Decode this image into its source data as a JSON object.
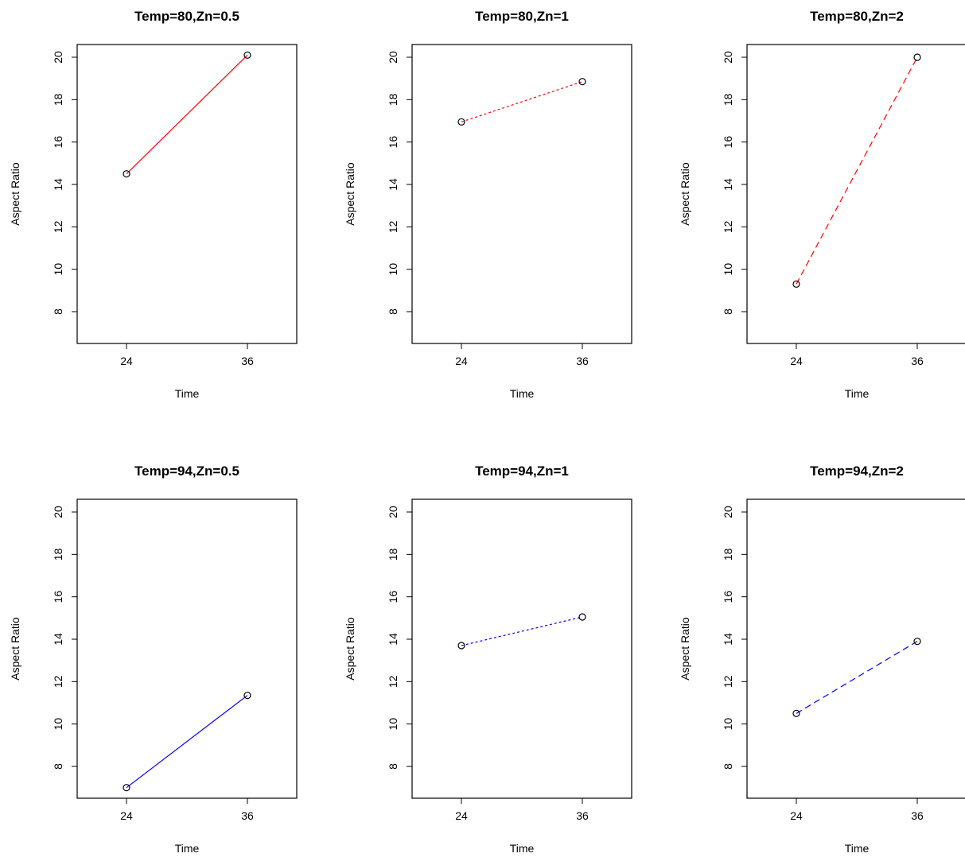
{
  "chart_data": [
    {
      "type": "line",
      "title": "Temp=80,Zn=0.5",
      "xlabel": "Time",
      "ylabel": "Aspect Ratio",
      "x": [
        24,
        36
      ],
      "x_ticks": [
        "24",
        "36"
      ],
      "y_ticks": [
        "8",
        "10",
        "12",
        "14",
        "16",
        "18",
        "20"
      ],
      "ylim": [
        6.5,
        20.6
      ],
      "series": [
        {
          "values": [
            14.5,
            20.1
          ],
          "color": "#ff0000",
          "dash": "solid"
        }
      ]
    },
    {
      "type": "line",
      "title": "Temp=80,Zn=1",
      "xlabel": "Time",
      "ylabel": "Aspect Ratio",
      "x": [
        24,
        36
      ],
      "x_ticks": [
        "24",
        "36"
      ],
      "y_ticks": [
        "8",
        "10",
        "12",
        "14",
        "16",
        "18",
        "20"
      ],
      "ylim": [
        6.5,
        20.6
      ],
      "series": [
        {
          "values": [
            16.95,
            18.85
          ],
          "color": "#ff0000",
          "dash": "dotted"
        }
      ]
    },
    {
      "type": "line",
      "title": "Temp=80,Zn=2",
      "xlabel": "Time",
      "ylabel": "Aspect Ratio",
      "x": [
        24,
        36
      ],
      "x_ticks": [
        "24",
        "36"
      ],
      "y_ticks": [
        "8",
        "10",
        "12",
        "14",
        "16",
        "18",
        "20"
      ],
      "ylim": [
        6.5,
        20.6
      ],
      "series": [
        {
          "values": [
            9.3,
            20.0
          ],
          "color": "#ff0000",
          "dash": "dashed"
        }
      ]
    },
    {
      "type": "line",
      "title": "Temp=94,Zn=0.5",
      "xlabel": "Time",
      "ylabel": "Aspect Ratio",
      "x": [
        24,
        36
      ],
      "x_ticks": [
        "24",
        "36"
      ],
      "y_ticks": [
        "8",
        "10",
        "12",
        "14",
        "16",
        "18",
        "20"
      ],
      "ylim": [
        6.5,
        20.6
      ],
      "series": [
        {
          "values": [
            7.0,
            11.35
          ],
          "color": "#0000ff",
          "dash": "solid"
        }
      ]
    },
    {
      "type": "line",
      "title": "Temp=94,Zn=1",
      "xlabel": "Time",
      "ylabel": "Aspect Ratio",
      "x": [
        24,
        36
      ],
      "x_ticks": [
        "24",
        "36"
      ],
      "y_ticks": [
        "8",
        "10",
        "12",
        "14",
        "16",
        "18",
        "20"
      ],
      "ylim": [
        6.5,
        20.6
      ],
      "series": [
        {
          "values": [
            13.7,
            15.05
          ],
          "color": "#0000ff",
          "dash": "dotted"
        }
      ]
    },
    {
      "type": "line",
      "title": "Temp=94,Zn=2",
      "xlabel": "Time",
      "ylabel": "Aspect Ratio",
      "x": [
        24,
        36
      ],
      "x_ticks": [
        "24",
        "36"
      ],
      "y_ticks": [
        "8",
        "10",
        "12",
        "14",
        "16",
        "18",
        "20"
      ],
      "ylim": [
        6.5,
        20.6
      ],
      "series": [
        {
          "values": [
            10.5,
            13.9
          ],
          "color": "#0000ff",
          "dash": "dashed"
        }
      ]
    }
  ]
}
